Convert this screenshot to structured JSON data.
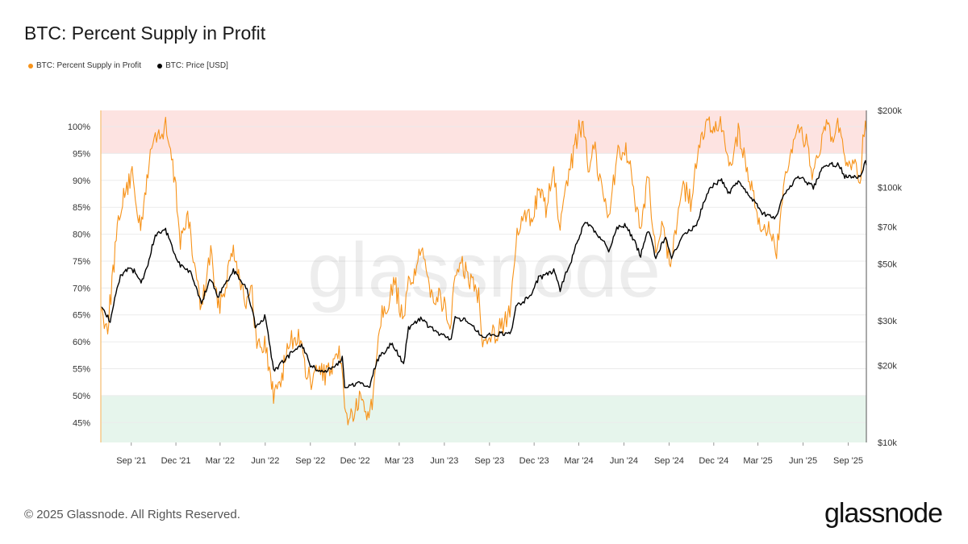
{
  "header": {
    "title": "BTC: Percent Supply in Profit"
  },
  "legend": [
    {
      "label": "BTC: Percent Supply in Profit",
      "color": "#F7931A"
    },
    {
      "label": "BTC: Price [USD]",
      "color": "#000000"
    }
  ],
  "footer": {
    "copyright": "© 2025 Glassnode. All Rights Reserved.",
    "logo": "glassnode"
  },
  "watermark": "glassnode",
  "colors": {
    "upper_zone": "#FDE3E1",
    "lower_zone": "#E6F5EC",
    "grid": "#EBEBEB"
  },
  "chart_data": {
    "type": "line",
    "title": "BTC: Percent Supply in Profit",
    "x_ticks": [
      "Sep '21",
      "Dec '21",
      "Mar '22",
      "Jun '22",
      "Sep '22",
      "Dec '22",
      "Mar '23",
      "Jun '23",
      "Sep '23",
      "Dec '23",
      "Mar '24",
      "Jun '24",
      "Sep '24",
      "Dec '24",
      "Mar '25",
      "Jun '25",
      "Sep '25"
    ],
    "y_left": {
      "ticks": [
        "45%",
        "50%",
        "55%",
        "60%",
        "65%",
        "70%",
        "75%",
        "80%",
        "85%",
        "90%",
        "95%",
        "100%"
      ],
      "min": 41.3,
      "max": 103
    },
    "y_right": {
      "scale": "log",
      "ticks": [
        "$10k",
        "$20k",
        "$30k",
        "$50k",
        "$70k",
        "$100k",
        "$200k"
      ],
      "min": 10000,
      "max": 200000
    },
    "zones": [
      {
        "name": "upper",
        "from": 95,
        "to": 103
      },
      {
        "name": "lower",
        "from": 41.3,
        "to": 50
      }
    ],
    "x_range": [
      "2021-07-01",
      "2025-10-08"
    ],
    "series": [
      {
        "name": "BTC: Percent Supply in Profit",
        "axis": "left",
        "color": "#F7931A",
        "points": [
          [
            "2021-07-01",
            66
          ],
          [
            "2021-07-15",
            63
          ],
          [
            "2021-07-28",
            75
          ],
          [
            "2021-08-10",
            85
          ],
          [
            "2021-08-25",
            89
          ],
          [
            "2021-09-05",
            91
          ],
          [
            "2021-09-20",
            80
          ],
          [
            "2021-10-05",
            92
          ],
          [
            "2021-10-15",
            97
          ],
          [
            "2021-10-25",
            99
          ],
          [
            "2021-11-05",
            98
          ],
          [
            "2021-11-10",
            100
          ],
          [
            "2021-11-20",
            95
          ],
          [
            "2021-12-01",
            88
          ],
          [
            "2021-12-10",
            79
          ],
          [
            "2021-12-25",
            83
          ],
          [
            "2022-01-10",
            73
          ],
          [
            "2022-01-22",
            66
          ],
          [
            "2022-02-10",
            77
          ],
          [
            "2022-02-24",
            66
          ],
          [
            "2022-03-10",
            70
          ],
          [
            "2022-03-28",
            78
          ],
          [
            "2022-04-10",
            72
          ],
          [
            "2022-04-25",
            67
          ],
          [
            "2022-05-05",
            69
          ],
          [
            "2022-05-15",
            59
          ],
          [
            "2022-05-31",
            60
          ],
          [
            "2022-06-14",
            52
          ],
          [
            "2022-06-18",
            50
          ],
          [
            "2022-07-05",
            54
          ],
          [
            "2022-07-20",
            60
          ],
          [
            "2022-08-10",
            61
          ],
          [
            "2022-08-20",
            55
          ],
          [
            "2022-09-05",
            52
          ],
          [
            "2022-09-15",
            55
          ],
          [
            "2022-10-01",
            54
          ],
          [
            "2022-10-20",
            55
          ],
          [
            "2022-11-01",
            58
          ],
          [
            "2022-11-10",
            47
          ],
          [
            "2022-11-25",
            46
          ],
          [
            "2022-12-10",
            49
          ],
          [
            "2022-12-25",
            47
          ],
          [
            "2023-01-05",
            48
          ],
          [
            "2023-01-15",
            60
          ],
          [
            "2023-01-25",
            66
          ],
          [
            "2023-02-10",
            68
          ],
          [
            "2023-02-20",
            71
          ],
          [
            "2023-03-10",
            63
          ],
          [
            "2023-03-20",
            71
          ],
          [
            "2023-04-01",
            73
          ],
          [
            "2023-04-15",
            77
          ],
          [
            "2023-04-25",
            72
          ],
          [
            "2023-05-10",
            69
          ],
          [
            "2023-05-25",
            68
          ],
          [
            "2023-06-15",
            63
          ],
          [
            "2023-06-23",
            73
          ],
          [
            "2023-07-10",
            74
          ],
          [
            "2023-07-25",
            71
          ],
          [
            "2023-08-10",
            69
          ],
          [
            "2023-08-18",
            61
          ],
          [
            "2023-09-01",
            61
          ],
          [
            "2023-09-15",
            62
          ],
          [
            "2023-10-01",
            64
          ],
          [
            "2023-10-15",
            66
          ],
          [
            "2023-10-25",
            79
          ],
          [
            "2023-11-10",
            83
          ],
          [
            "2023-11-25",
            83
          ],
          [
            "2023-12-10",
            88
          ],
          [
            "2023-12-25",
            85
          ],
          [
            "2024-01-10",
            91
          ],
          [
            "2024-01-23",
            81
          ],
          [
            "2024-02-05",
            88
          ],
          [
            "2024-02-15",
            93
          ],
          [
            "2024-02-28",
            99
          ],
          [
            "2024-03-14",
            100
          ],
          [
            "2024-03-20",
            92
          ],
          [
            "2024-04-01",
            97
          ],
          [
            "2024-04-15",
            89
          ],
          [
            "2024-05-01",
            84
          ],
          [
            "2024-05-20",
            95
          ],
          [
            "2024-06-05",
            96
          ],
          [
            "2024-06-25",
            86
          ],
          [
            "2024-07-05",
            79
          ],
          [
            "2024-07-20",
            91
          ],
          [
            "2024-08-05",
            77
          ],
          [
            "2024-08-15",
            81
          ],
          [
            "2024-09-06",
            75
          ],
          [
            "2024-09-20",
            85
          ],
          [
            "2024-09-30",
            89
          ],
          [
            "2024-10-15",
            86
          ],
          [
            "2024-10-29",
            94
          ],
          [
            "2024-11-12",
            100
          ],
          [
            "2024-11-22",
            100
          ],
          [
            "2024-12-05",
            99
          ],
          [
            "2024-12-17",
            100
          ],
          [
            "2025-01-01",
            92
          ],
          [
            "2025-01-20",
            99
          ],
          [
            "2025-02-03",
            93
          ],
          [
            "2025-02-25",
            86
          ],
          [
            "2025-03-10",
            79
          ],
          [
            "2025-03-25",
            82
          ],
          [
            "2025-04-08",
            76
          ],
          [
            "2025-04-22",
            88
          ],
          [
            "2025-05-10",
            95
          ],
          [
            "2025-05-22",
            100
          ],
          [
            "2025-06-10",
            97
          ],
          [
            "2025-06-22",
            90
          ],
          [
            "2025-07-14",
            100
          ],
          [
            "2025-07-30",
            98
          ],
          [
            "2025-08-13",
            100
          ],
          [
            "2025-08-25",
            94
          ],
          [
            "2025-09-05",
            91
          ],
          [
            "2025-09-15",
            94
          ],
          [
            "2025-09-25",
            89
          ],
          [
            "2025-10-01",
            97
          ],
          [
            "2025-10-06",
            100
          ],
          [
            "2025-10-08",
            99
          ]
        ]
      },
      {
        "name": "BTC: Price [USD]",
        "axis": "right",
        "color": "#000000",
        "points": [
          [
            "2021-07-01",
            34500
          ],
          [
            "2021-07-20",
            29800
          ],
          [
            "2021-08-10",
            45000
          ],
          [
            "2021-08-25",
            48000
          ],
          [
            "2021-09-07",
            47000
          ],
          [
            "2021-09-21",
            42000
          ],
          [
            "2021-10-05",
            50000
          ],
          [
            "2021-10-20",
            65000
          ],
          [
            "2021-11-10",
            68000
          ],
          [
            "2021-11-25",
            57000
          ],
          [
            "2021-12-10",
            49000
          ],
          [
            "2021-12-31",
            46000
          ],
          [
            "2022-01-22",
            35000
          ],
          [
            "2022-02-10",
            44000
          ],
          [
            "2022-02-24",
            37000
          ],
          [
            "2022-03-28",
            47000
          ],
          [
            "2022-04-25",
            40000
          ],
          [
            "2022-05-12",
            28500
          ],
          [
            "2022-05-31",
            31000
          ],
          [
            "2022-06-18",
            19000
          ],
          [
            "2022-07-10",
            21000
          ],
          [
            "2022-08-14",
            24300
          ],
          [
            "2022-09-01",
            20000
          ],
          [
            "2022-09-20",
            19000
          ],
          [
            "2022-10-20",
            19500
          ],
          [
            "2022-11-05",
            21300
          ],
          [
            "2022-11-10",
            16500
          ],
          [
            "2022-12-10",
            17100
          ],
          [
            "2022-12-31",
            16500
          ],
          [
            "2023-01-15",
            21000
          ],
          [
            "2023-02-15",
            24500
          ],
          [
            "2023-03-10",
            20000
          ],
          [
            "2023-03-20",
            28000
          ],
          [
            "2023-04-14",
            30400
          ],
          [
            "2023-05-10",
            27500
          ],
          [
            "2023-06-15",
            25100
          ],
          [
            "2023-06-23",
            30500
          ],
          [
            "2023-07-15",
            30000
          ],
          [
            "2023-08-18",
            26000
          ],
          [
            "2023-09-15",
            26600
          ],
          [
            "2023-10-15",
            27000
          ],
          [
            "2023-10-25",
            34000
          ],
          [
            "2023-11-25",
            37500
          ],
          [
            "2023-12-10",
            44000
          ],
          [
            "2024-01-10",
            47000
          ],
          [
            "2024-01-23",
            39500
          ],
          [
            "2024-02-15",
            52000
          ],
          [
            "2024-02-28",
            62000
          ],
          [
            "2024-03-14",
            73000
          ],
          [
            "2024-04-15",
            63000
          ],
          [
            "2024-05-01",
            57000
          ],
          [
            "2024-05-20",
            70000
          ],
          [
            "2024-06-05",
            71000
          ],
          [
            "2024-07-05",
            54000
          ],
          [
            "2024-07-20",
            68000
          ],
          [
            "2024-08-05",
            53000
          ],
          [
            "2024-08-25",
            64000
          ],
          [
            "2024-09-06",
            53500
          ],
          [
            "2024-09-30",
            64000
          ],
          [
            "2024-10-29",
            72000
          ],
          [
            "2024-11-12",
            89000
          ],
          [
            "2024-11-22",
            99000
          ],
          [
            "2024-12-17",
            107000
          ],
          [
            "2025-01-01",
            94000
          ],
          [
            "2025-01-20",
            106000
          ],
          [
            "2025-02-25",
            86000
          ],
          [
            "2025-03-10",
            79000
          ],
          [
            "2025-04-08",
            76000
          ],
          [
            "2025-04-22",
            93000
          ],
          [
            "2025-05-22",
            111000
          ],
          [
            "2025-06-22",
            100000
          ],
          [
            "2025-07-14",
            122000
          ],
          [
            "2025-08-13",
            123000
          ],
          [
            "2025-08-25",
            110000
          ],
          [
            "2025-09-05",
            111000
          ],
          [
            "2025-09-25",
            109000
          ],
          [
            "2025-10-06",
            125000
          ],
          [
            "2025-10-08",
            122000
          ]
        ]
      }
    ]
  }
}
